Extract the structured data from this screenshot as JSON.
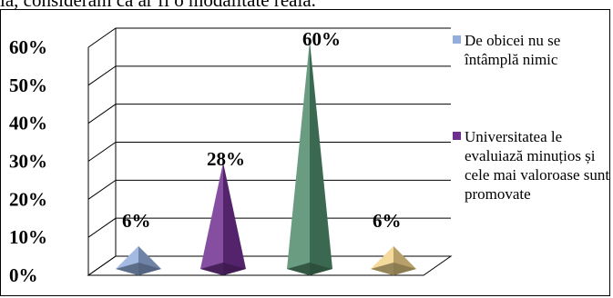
{
  "page": {
    "top_text_fragment": "ia, considerăm că ar fi o modalitate reală."
  },
  "chart_data": {
    "type": "bar",
    "style": "3d-pyramid",
    "categories": [
      "",
      "",
      "",
      ""
    ],
    "values": [
      6,
      28,
      60,
      6
    ],
    "data_labels": [
      "6%",
      "28%",
      "60%",
      "6%"
    ],
    "colors": [
      "#93aedd",
      "#6f2f8f",
      "#4f8a6a",
      "#f2d48a"
    ],
    "ylim": [
      0,
      60
    ],
    "yticks": [
      "0%",
      "10%",
      "20%",
      "30%",
      "40%",
      "50%",
      "60%"
    ],
    "grid": true,
    "legend_position": "right",
    "legend": [
      {
        "label": "De obicei nu se întâmplă nimic",
        "color": "#93aedd"
      },
      {
        "label": "Universitatea le evaluiază minuțios și cele mai valoroase sunt promovate",
        "color": "#6f2f8f"
      }
    ]
  }
}
